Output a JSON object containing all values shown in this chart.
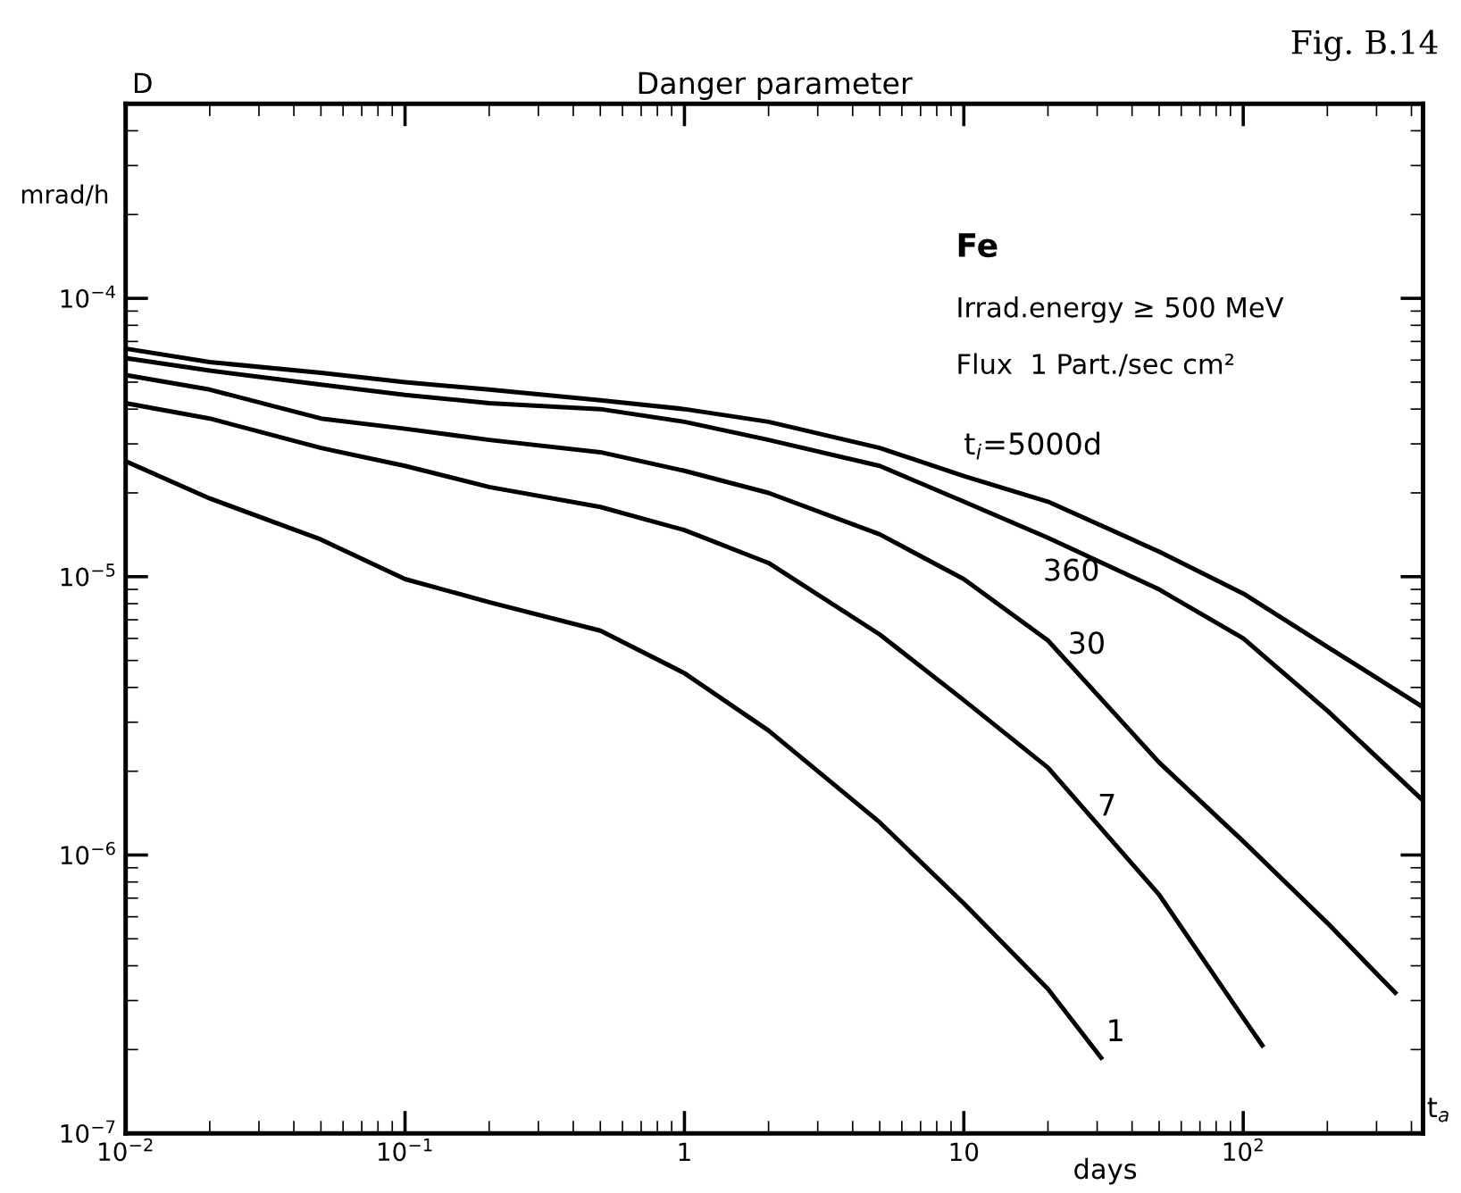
{
  "chart_data": {
    "type": "line",
    "title": "Danger parameter",
    "xlabel": "days",
    "ylabel": "mrad/h",
    "log": "xy",
    "grid": false,
    "legend": false,
    "marker": "none",
    "line_style": "solid",
    "xlim": [
      0.01,
      440
    ],
    "ylim": [
      1e-07,
      0.0005
    ],
    "xticks": [
      {
        "value": 0.01,
        "label": "10$^{−2}$"
      },
      {
        "value": 0.1,
        "label": "10$^{−1}$"
      },
      1,
      10,
      {
        "value": 100,
        "label": "10$^{2}$"
      }
    ],
    "yticks": [
      {
        "value": 1e-07,
        "label": "10$^{−7}$"
      },
      {
        "value": 1e-06,
        "label": "10$^{−6}$"
      },
      {
        "value": 1e-05,
        "label": "10$^{−5}$"
      },
      {
        "value": 0.0001,
        "label": "10$^{−4}$"
      }
    ],
    "series": [
      {
        "name": "t$_{i}$=5000d",
        "color": "#000000",
        "x": [
          0.01,
          0.02,
          0.05,
          0.1,
          0.2,
          0.5,
          1,
          2,
          5,
          10,
          20,
          50,
          100,
          200,
          440
        ],
        "values": [
          6.6e-05,
          5.9e-05,
          5.4e-05,
          5e-05,
          4.7e-05,
          4.3e-05,
          4e-05,
          3.6e-05,
          2.9e-05,
          2.3e-05,
          1.86e-05,
          1.23e-05,
          8.7e-06,
          5.6e-06,
          3.4e-06
        ]
      },
      {
        "name": "360",
        "color": "#000000",
        "x": [
          0.01,
          0.02,
          0.05,
          0.1,
          0.2,
          0.5,
          1,
          2,
          5,
          10,
          20,
          50,
          100,
          200,
          440
        ],
        "values": [
          6.1e-05,
          5.5e-05,
          4.9e-05,
          4.5e-05,
          4.2e-05,
          4e-05,
          3.6e-05,
          3.1e-05,
          2.5e-05,
          1.86e-05,
          1.38e-05,
          9e-06,
          6e-06,
          3.3e-06,
          1.57e-06
        ]
      },
      {
        "name": "30",
        "color": "#000000",
        "x": [
          0.01,
          0.02,
          0.05,
          0.1,
          0.2,
          0.5,
          1,
          2,
          5,
          10,
          20,
          50,
          100,
          200,
          350
        ],
        "values": [
          5.3e-05,
          4.7e-05,
          3.7e-05,
          3.4e-05,
          3.1e-05,
          2.8e-05,
          2.4e-05,
          2e-05,
          1.42e-05,
          9.8e-06,
          5.9e-06,
          2.15e-06,
          1.12e-06,
          5.7e-07,
          3.2e-07
        ]
      },
      {
        "name": "7",
        "color": "#000000",
        "x": [
          0.01,
          0.02,
          0.05,
          0.1,
          0.2,
          0.5,
          1,
          2,
          5,
          10,
          20,
          50,
          100,
          117
        ],
        "values": [
          4.2e-05,
          3.7e-05,
          2.9e-05,
          2.5e-05,
          2.1e-05,
          1.78e-05,
          1.47e-05,
          1.12e-05,
          6.2e-06,
          3.6e-06,
          2.06e-06,
          7.2e-07,
          2.6e-07,
          2.07e-07
        ]
      },
      {
        "name": "1",
        "color": "#000000",
        "x": [
          0.01,
          0.02,
          0.05,
          0.1,
          0.2,
          0.5,
          1,
          2,
          5,
          10,
          20,
          31
        ],
        "values": [
          2.6e-05,
          1.91e-05,
          1.36e-05,
          9.8e-06,
          8.1e-06,
          6.4e-06,
          4.5e-06,
          2.8e-06,
          1.31e-06,
          6.7e-07,
          3.3e-07,
          1.87e-07
        ]
      }
    ],
    "annotations": [
      "Fig. B.14",
      "D",
      "Fe",
      "Irrad.energy ≥ 500 MeV",
      "Flux  1 Part./sec cm²",
      "t$_{a}$"
    ]
  }
}
